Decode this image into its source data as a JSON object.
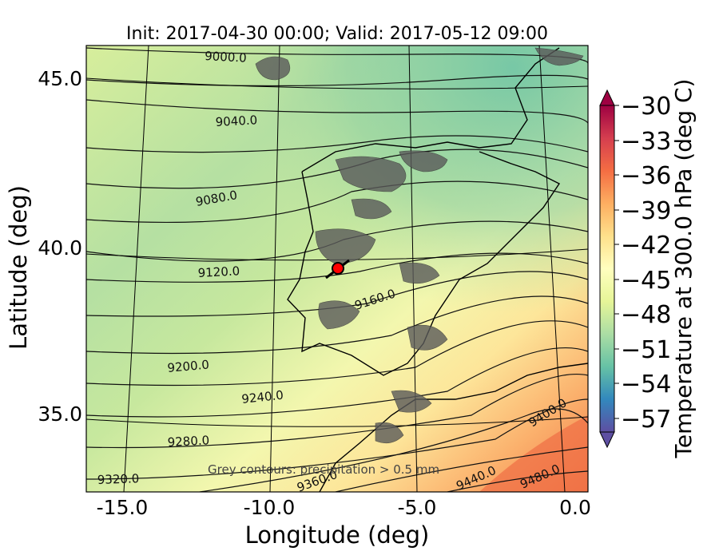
{
  "title": "Init: 2017-04-30 00:00; Valid: 2017-05-12 09:00",
  "xlabel": "Longitude (deg)",
  "ylabel": "Latitude (deg)",
  "xticks": [
    "-15.0",
    "-10.0",
    "-5.0",
    "0.0"
  ],
  "yticks": [
    "45.0",
    "40.0",
    "35.0"
  ],
  "colorbar": {
    "label": "Temperature at 300.0 hPa (deg C)",
    "ticks": [
      "−30",
      "−33",
      "−36",
      "−39",
      "−42",
      "−45",
      "−48",
      "−51",
      "−54",
      "−57"
    ],
    "colors": [
      "#5e4fa2",
      "#3288bd",
      "#66c2a5",
      "#abdda4",
      "#e6f598",
      "#ffffbf",
      "#fee08b",
      "#fdae61",
      "#f46d43",
      "#d53e4f",
      "#9e0142"
    ]
  },
  "contour_labels": [
    "9000.0",
    "9040.0",
    "9080.0",
    "9120.0",
    "9160.0",
    "9200.0",
    "9240.0",
    "9280.0",
    "9320.0",
    "9360.0",
    "9400.0",
    "9440.0",
    "9480.0"
  ],
  "note": "Grey contours: precipitation > 0.5 mm",
  "marker": {
    "lon": -7.6,
    "lat": 39.3,
    "color": "#ff0000"
  },
  "chart_data": {
    "type": "heatmap",
    "title": "Init: 2017-04-30 00:00; Valid: 2017-05-12 09:00",
    "xlabel": "Longitude (deg)",
    "ylabel": "Latitude (deg)",
    "xlim": [
      -16,
      0.3
    ],
    "ylim": [
      32.5,
      46
    ],
    "colorbar_range": [
      -58,
      -30
    ],
    "contour_levels": [
      9000,
      9040,
      9080,
      9120,
      9160,
      9200,
      9240,
      9280,
      9320,
      9360,
      9400,
      9440,
      9480
    ]
  }
}
